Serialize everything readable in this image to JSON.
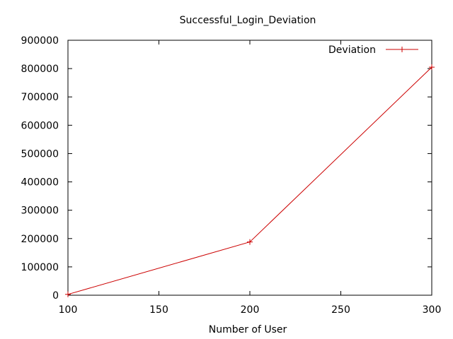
{
  "chart_data": {
    "type": "line",
    "title": "Successful_Login_Deviation",
    "xlabel": "Number of User",
    "ylabel": "",
    "xlim": [
      100,
      300
    ],
    "ylim": [
      0,
      900000
    ],
    "x_ticks": [
      100,
      150,
      200,
      250,
      300
    ],
    "y_ticks": [
      0,
      100000,
      200000,
      300000,
      400000,
      500000,
      600000,
      700000,
      800000,
      900000
    ],
    "grid": false,
    "legend_position": "top-right",
    "series": [
      {
        "name": "Deviation",
        "color": "#cc0000",
        "marker": "plus",
        "x": [
          100,
          200,
          300
        ],
        "y": [
          3000,
          188000,
          805000
        ]
      }
    ]
  }
}
